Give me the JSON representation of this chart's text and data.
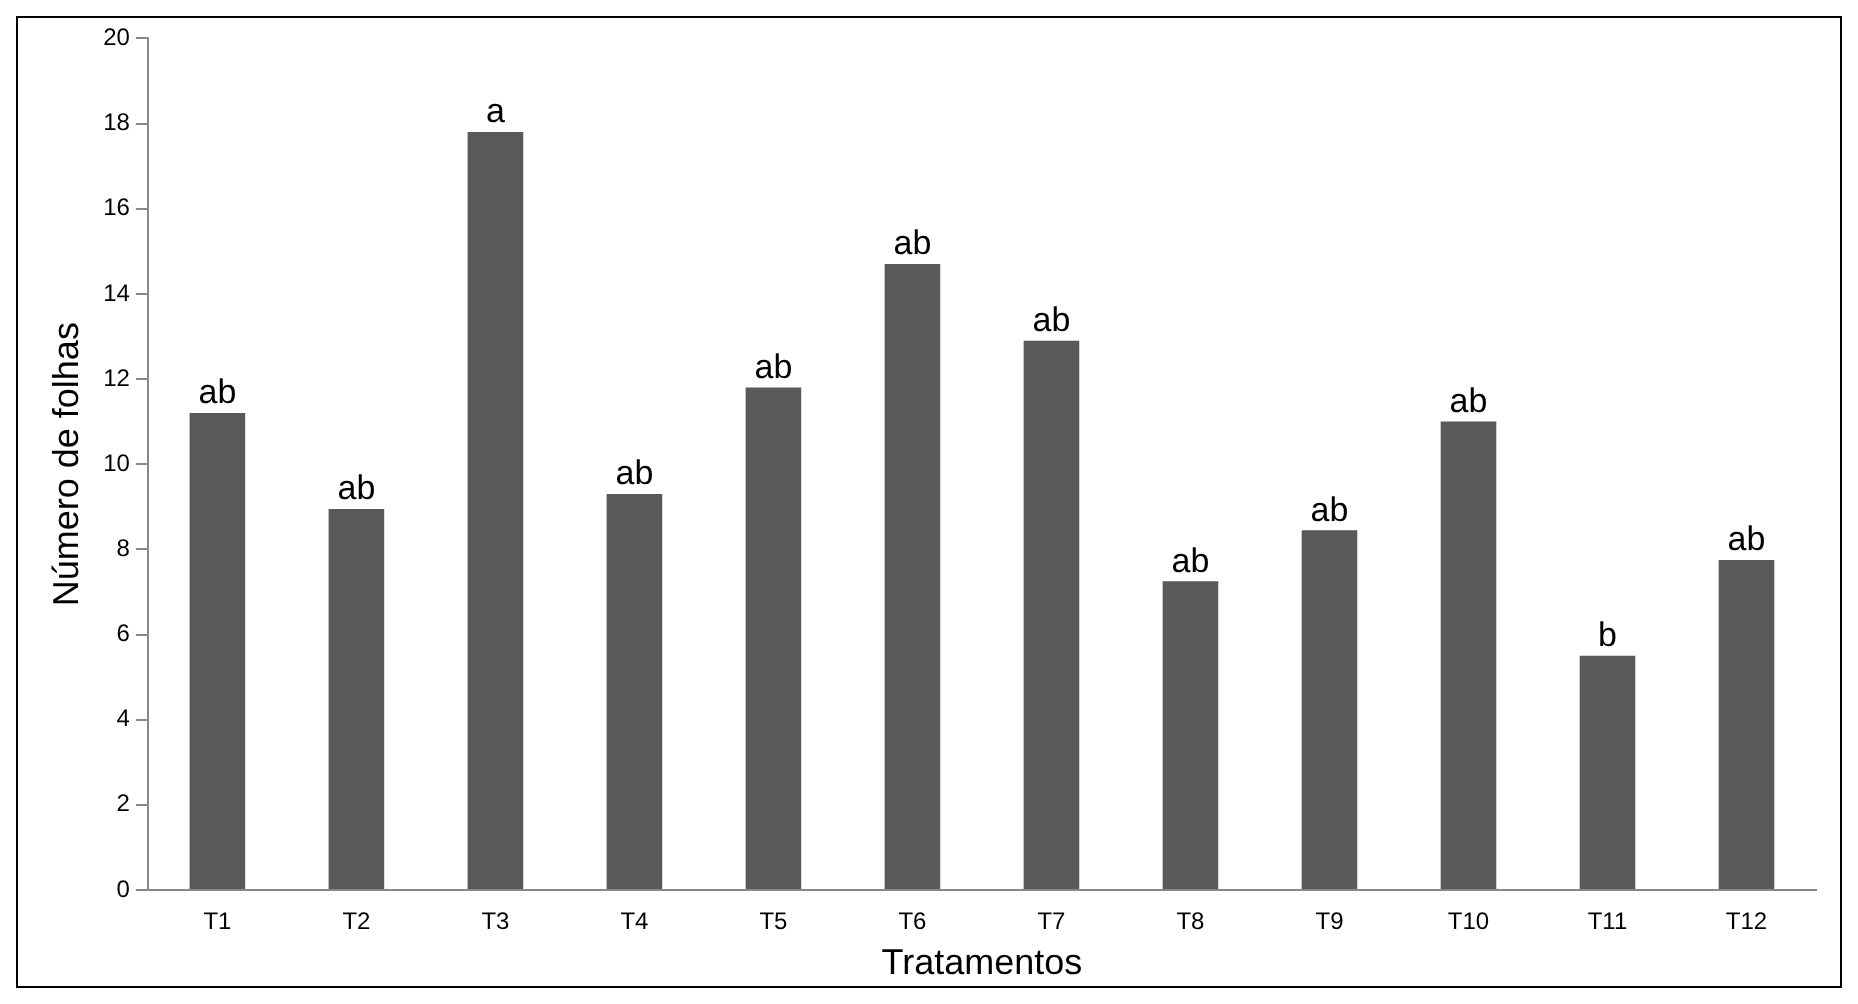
{
  "chart_data": {
    "type": "bar",
    "xlabel": "Tratamentos",
    "ylabel": "Número de folhas",
    "categories": [
      "T1",
      "T2",
      "T3",
      "T4",
      "T5",
      "T6",
      "T7",
      "T8",
      "T9",
      "T10",
      "T11",
      "T12"
    ],
    "values": [
      11.2,
      8.95,
      17.8,
      9.3,
      11.8,
      14.7,
      12.9,
      7.25,
      8.45,
      11.0,
      5.5,
      7.75
    ],
    "color": "#595959",
    "ylim": [
      0,
      20
    ],
    "yticks": [
      0,
      2,
      4,
      6,
      8,
      10,
      12,
      14,
      16,
      18,
      20
    ],
    "grid": false,
    "legend": false,
    "annotations": [
      {
        "text": "ab",
        "x": "T1",
        "y": 11.2
      },
      {
        "text": "ab",
        "x": "T2",
        "y": 8.95
      },
      {
        "text": "a",
        "x": "T3",
        "y": 17.8
      },
      {
        "text": "ab",
        "x": "T4",
        "y": 9.3
      },
      {
        "text": "ab",
        "x": "T5",
        "y": 11.8
      },
      {
        "text": "ab",
        "x": "T6",
        "y": 14.7
      },
      {
        "text": "ab",
        "x": "T7",
        "y": 12.9
      },
      {
        "text": "ab",
        "x": "T8",
        "y": 7.25
      },
      {
        "text": "ab",
        "x": "T9",
        "y": 8.45
      },
      {
        "text": "ab",
        "x": "T10",
        "y": 11.0
      },
      {
        "text": "b",
        "x": "T11",
        "y": 5.5
      },
      {
        "text": "ab",
        "x": "T12",
        "y": 7.75
      }
    ]
  }
}
